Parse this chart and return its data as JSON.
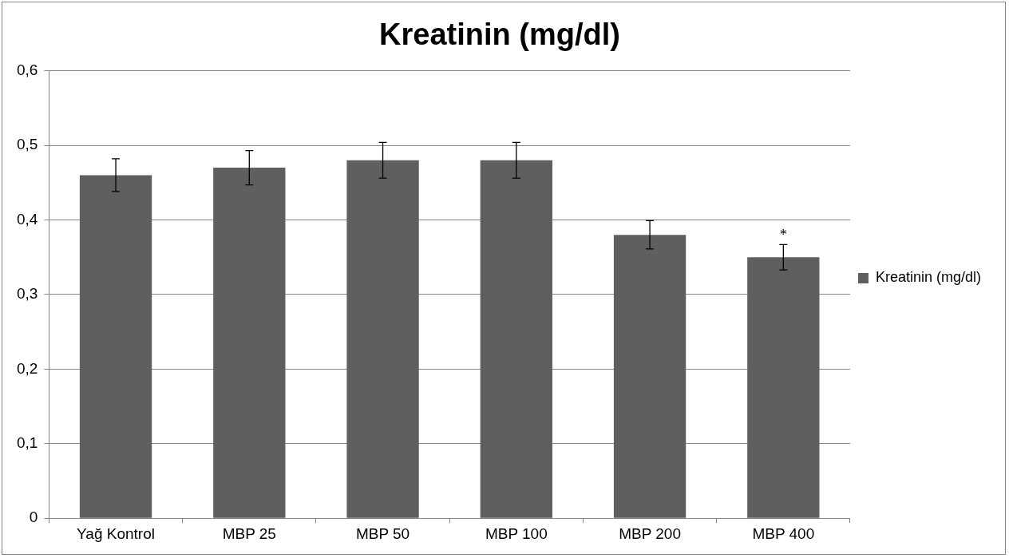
{
  "chart_data": {
    "type": "bar",
    "title": "Kreatinin (mg/dl)",
    "categories": [
      "Yağ Kontrol",
      "MBP 25",
      "MBP 50",
      "MBP 100",
      "MBP 200",
      "MBP 400"
    ],
    "series": [
      {
        "name": "Kreatinin (mg/dl)",
        "color": "#5f5f5f",
        "values": [
          0.46,
          0.47,
          0.48,
          0.48,
          0.38,
          0.35
        ],
        "errors": [
          0.022,
          0.023,
          0.024,
          0.024,
          0.019,
          0.017
        ]
      }
    ],
    "ylim": [
      0,
      0.6
    ],
    "yticks": [
      {
        "value": 0,
        "label": "0"
      },
      {
        "value": 0.1,
        "label": "0,1"
      },
      {
        "value": 0.2,
        "label": "0,2"
      },
      {
        "value": 0.3,
        "label": "0,3"
      },
      {
        "value": 0.4,
        "label": "0,4"
      },
      {
        "value": 0.5,
        "label": "0,5"
      },
      {
        "value": 0.6,
        "label": "0,6"
      }
    ],
    "grid": "y",
    "legend": "right",
    "annotations": [
      {
        "text": "*",
        "x": "MBP 400",
        "y": 0.367
      }
    ]
  }
}
